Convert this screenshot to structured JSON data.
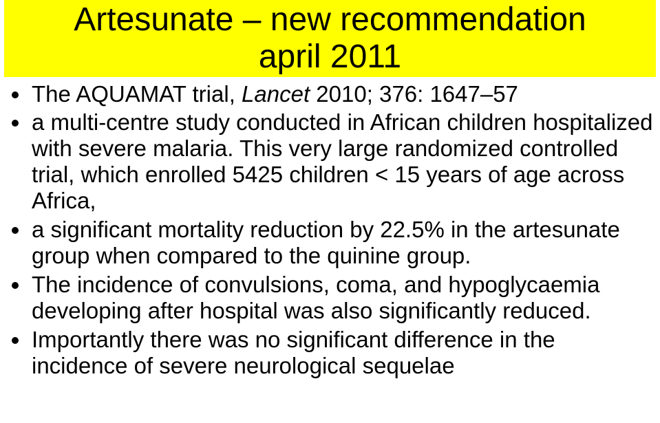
{
  "title_fontsize": 48,
  "body_fontsize": 33,
  "title_bg": "#ffff00",
  "title_color": "#000000",
  "body_color": "#000000",
  "background_color": "#ffffff",
  "title_line1": "Artesunate – new recommendation",
  "title_line2": "april 2011",
  "bullets": [
    {
      "pre": "The AQUAMAT trial, ",
      "italic": "Lancet",
      "post": " 2010; 376: 1647–57"
    },
    {
      "pre": "a multi-centre study conducted in African children hospitalized with severe malaria. This very large randomized controlled trial, which enrolled 5425 children < 15 years of age across Africa,",
      "italic": "",
      "post": ""
    },
    {
      "pre": "a significant mortality reduction by 22.5% in the artesunate group when compared to the quinine group.",
      "italic": "",
      "post": ""
    },
    {
      "pre": "The incidence of convulsions, coma, and hypoglycaemia developing after hospital was also significantly reduced.",
      "italic": "",
      "post": ""
    },
    {
      "pre": "Importantly there was no significant difference in the incidence of severe neurological sequelae",
      "italic": "",
      "post": ""
    }
  ]
}
